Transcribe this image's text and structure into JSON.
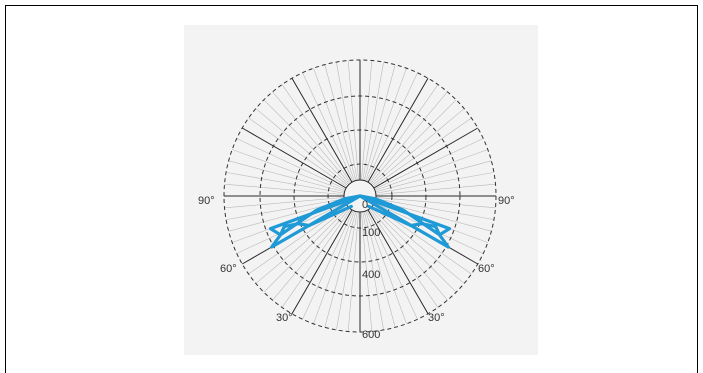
{
  "chart_data": {
    "type": "polar",
    "radial_scale": {
      "rings": [
        100,
        400,
        600
      ],
      "max": 600
    },
    "angle_labels": {
      "left_90": "90°",
      "right_90": "90°",
      "left_60": "60°",
      "right_60": "60°",
      "left_30": "30°",
      "right_30": "30°"
    },
    "radial_labels": {
      "r0": "0",
      "r100": "100",
      "r400": "400",
      "r600": "600"
    },
    "series_color": "#1f9ad6",
    "series": [
      {
        "values": [
          {
            "angle": 90,
            "r": 0
          },
          {
            "angle": 80,
            "r": 70
          },
          {
            "angle": 72,
            "r": 200
          },
          {
            "angle": 64,
            "r": 390
          },
          {
            "angle": 60,
            "r": 450
          },
          {
            "angle": 0,
            "r": 0
          },
          {
            "angle": -60,
            "r": 450
          },
          {
            "angle": -64,
            "r": 390
          },
          {
            "angle": -72,
            "r": 200
          },
          {
            "angle": -80,
            "r": 70
          },
          {
            "angle": -90,
            "r": 0
          }
        ]
      },
      {
        "values": [
          {
            "angle": 40,
            "r": 60
          },
          {
            "angle": 60,
            "r": 260
          },
          {
            "angle": 66,
            "r": 300
          },
          {
            "angle": 68,
            "r": 360
          },
          {
            "angle": 64,
            "r": 390
          },
          {
            "angle": 70,
            "r": 420
          },
          {
            "angle": 0,
            "r": 0
          },
          {
            "angle": -70,
            "r": 420
          },
          {
            "angle": -64,
            "r": 390
          },
          {
            "angle": -68,
            "r": 360
          },
          {
            "angle": -66,
            "r": 300
          },
          {
            "angle": -60,
            "r": 260
          },
          {
            "angle": -40,
            "r": 60
          }
        ]
      }
    ]
  }
}
